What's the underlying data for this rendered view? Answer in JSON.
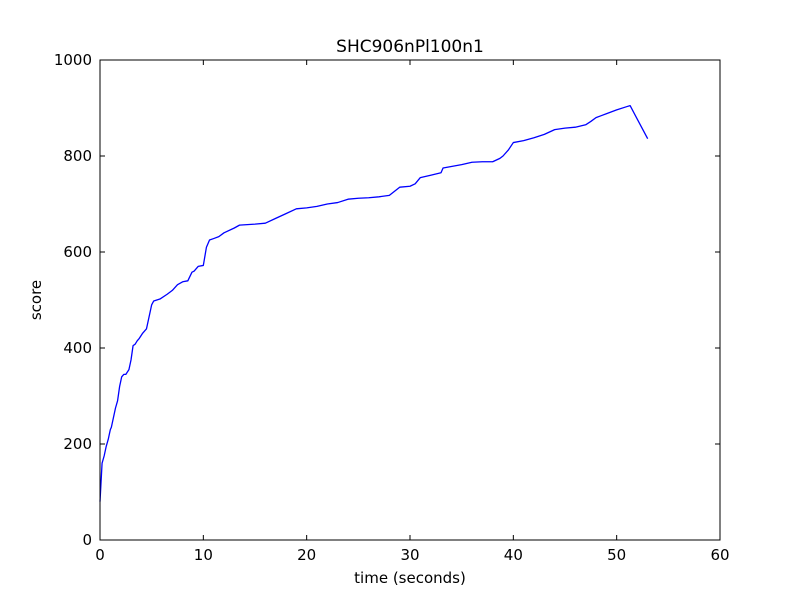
{
  "chart_data": {
    "type": "line",
    "title": "SHC906nPl100n1",
    "xlabel": "time (seconds)",
    "ylabel": "score",
    "xlim": [
      0,
      60
    ],
    "ylim": [
      0,
      1000
    ],
    "xticks": [
      0,
      10,
      20,
      30,
      40,
      50,
      60
    ],
    "yticks": [
      0,
      200,
      400,
      600,
      800,
      1000
    ],
    "xtick_labels": [
      "0",
      "10",
      "20",
      "30",
      "40",
      "50",
      "60"
    ],
    "ytick_labels": [
      "0",
      "200",
      "400",
      "600",
      "800",
      "1000"
    ],
    "grid": false,
    "line_color": "#0000ff",
    "series": [
      {
        "x": [
          0.0,
          0.2,
          0.4,
          0.6,
          0.8,
          0.9,
          1.0,
          1.1,
          1.3,
          1.5,
          1.7,
          1.9,
          2.1,
          2.3,
          2.5,
          2.8,
          3.0,
          3.2,
          3.4,
          3.6,
          3.8,
          4.1,
          4.5,
          4.8,
          5.0,
          5.2,
          5.5,
          5.8,
          6.5,
          7.0,
          7.5,
          8.0,
          8.5,
          8.9,
          9.1,
          9.5,
          10.0,
          10.3,
          10.6,
          11.0,
          11.5,
          12.0,
          13.0,
          13.5,
          15.0,
          16.0,
          17.0,
          18.0,
          19.0,
          20.0,
          21.0,
          22.0,
          23.0,
          24.0,
          25.0,
          26.0,
          27.0,
          28.0,
          29.0,
          30.0,
          30.5,
          31.0,
          32.0,
          33.0,
          33.2,
          35.0,
          36.0,
          37.0,
          38.0,
          38.7,
          39.0,
          39.5,
          40.0,
          41.0,
          42.0,
          43.0,
          44.0,
          45.0,
          46.0,
          47.0,
          47.5,
          48.0,
          48.5,
          49.0,
          50.0,
          51.0,
          51.3,
          53.0
        ],
        "y": [
          80,
          160,
          175,
          195,
          210,
          220,
          230,
          235,
          255,
          275,
          290,
          320,
          340,
          345,
          345,
          355,
          375,
          405,
          408,
          415,
          420,
          430,
          440,
          470,
          490,
          498,
          500,
          502,
          512,
          520,
          532,
          538,
          540,
          558,
          560,
          570,
          572,
          610,
          625,
          628,
          632,
          640,
          650,
          656,
          658,
          660,
          670,
          680,
          690,
          692,
          695,
          700,
          703,
          710,
          712,
          713,
          715,
          718,
          735,
          737,
          742,
          755,
          760,
          765,
          775,
          782,
          787,
          788,
          788,
          795,
          800,
          812,
          828,
          832,
          838,
          845,
          855,
          858,
          860,
          865,
          872,
          880,
          884,
          888,
          896,
          903,
          905,
          836
        ]
      }
    ]
  }
}
